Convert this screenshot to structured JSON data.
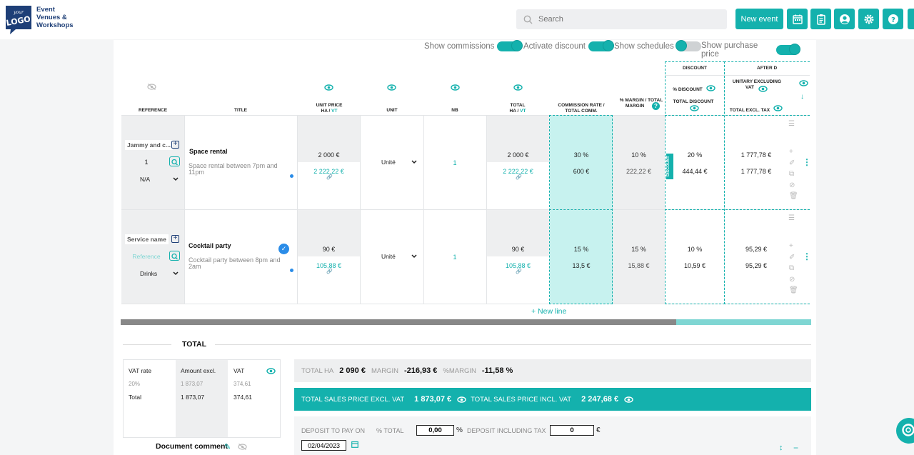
{
  "header": {
    "logo_text_top": "your",
    "logo_text_main": "LOGO",
    "brand_line1": "Event",
    "brand_line2": "Venues &",
    "brand_line3": "Workshops",
    "search_placeholder": "Search",
    "new_event_label": "New event"
  },
  "toggles": {
    "show_commissions": "Show commissions",
    "activate_discount": "Activate discount",
    "show_schedules": "Show schedules",
    "show_purchase_price": "Show purchase price"
  },
  "columns": {
    "reference": "REFERENCE",
    "title": "TITLE",
    "unit_price_a": "UNIT PRICE",
    "unit_price_b": "HA / ",
    "unit_price_vt": "VT",
    "unit": "UNIT",
    "nb": "NB",
    "total_a": "TOTAL",
    "total_b": "HA / ",
    "total_vt": "VT",
    "commission_a": "COMMISSION RATE /",
    "commission_b": "TOTAL COMM.",
    "margin_a": "% MARGIN / TOTAL",
    "margin_b": "MARGIN",
    "discount_group": "DISCOUNT",
    "discount_pct": "% DISCOUNT",
    "discount_total": "TOTAL DISCOUNT",
    "after_group": "AFTER D",
    "unitary_a": "UNITARY EXCLUDING",
    "unitary_b": "VAT",
    "total_excl": "TOTAL EXCL. TAX",
    "discount_vertical": "DISCOUNT"
  },
  "rows": [
    {
      "ref_name": "Jammy and c...",
      "ref_code": "1",
      "ref_select": "N/A",
      "title": "Space rental",
      "desc_line1": "Space rental between 7pm and",
      "desc_line2": "11pm",
      "unit_price_ha": "2 000 €",
      "unit_price_vt": "2 222,22 €",
      "unit": "Unité",
      "nb": "1",
      "total_ha": "2 000 €",
      "total_vt": "2 222,22 €",
      "comm_rate": "30 %",
      "comm_total": "600 €",
      "margin_pct": "10 %",
      "margin_total": "222,22 €",
      "discount_pct": "20 %",
      "discount_total": "444,44 €",
      "unitary": "1 777,78 €",
      "total_excl": "1 777,78 €"
    },
    {
      "ref_name": "Service name",
      "ref_code": "Reference",
      "ref_select": "Drinks",
      "title": "Cocktail party",
      "desc_line1": "Cocktail party between 8pm and",
      "desc_line2": "2am",
      "unit_price_ha": "90 €",
      "unit_price_vt": "105,88 €",
      "unit": "Unité",
      "nb": "1",
      "total_ha": "90 €",
      "total_vt": "105,88 €",
      "comm_rate": "15 %",
      "comm_total": "13,5 €",
      "margin_pct": "15 %",
      "margin_total": "15,88 €",
      "discount_pct": "10 %",
      "discount_total": "10,59 €",
      "unitary": "95,29 €",
      "total_excl": "95,29 €"
    }
  ],
  "new_line": "+ New line",
  "total_section": {
    "title": "TOTAL",
    "vat_headers": [
      "VAT rate",
      "Amount excl.",
      "VAT"
    ],
    "vat_row": [
      "20%",
      "1 873,07",
      "374,61"
    ],
    "vat_total": [
      "Total",
      "1 873,07",
      "374,61"
    ],
    "doc_comment": "Document comment",
    "total_ha_label": "TOTAL HA",
    "total_ha_value": "2 090 €",
    "margin_label": "MARGIN",
    "margin_value": "-216,93 €",
    "pct_margin_label": "%MARGIN",
    "pct_margin_value": "-11,58 %",
    "sales_excl_label": "TOTAL SALES PRICE EXCL. VAT",
    "sales_excl_value": "1 873,07 €",
    "sales_incl_label": "TOTAL SALES PRICE INCL. VAT",
    "sales_incl_value": "2 247,68 €",
    "deposit_to_pay_label": "DEPOSIT TO PAY ON",
    "deposit_date": "02/04/2023",
    "pct_total_label": "% TOTAL",
    "pct_total_value": "0,00",
    "pct_sign": "%",
    "deposit_incl_label": "DEPOSIT INCLUDING TAX",
    "deposit_incl_value": "0",
    "euro_sign": "€"
  }
}
